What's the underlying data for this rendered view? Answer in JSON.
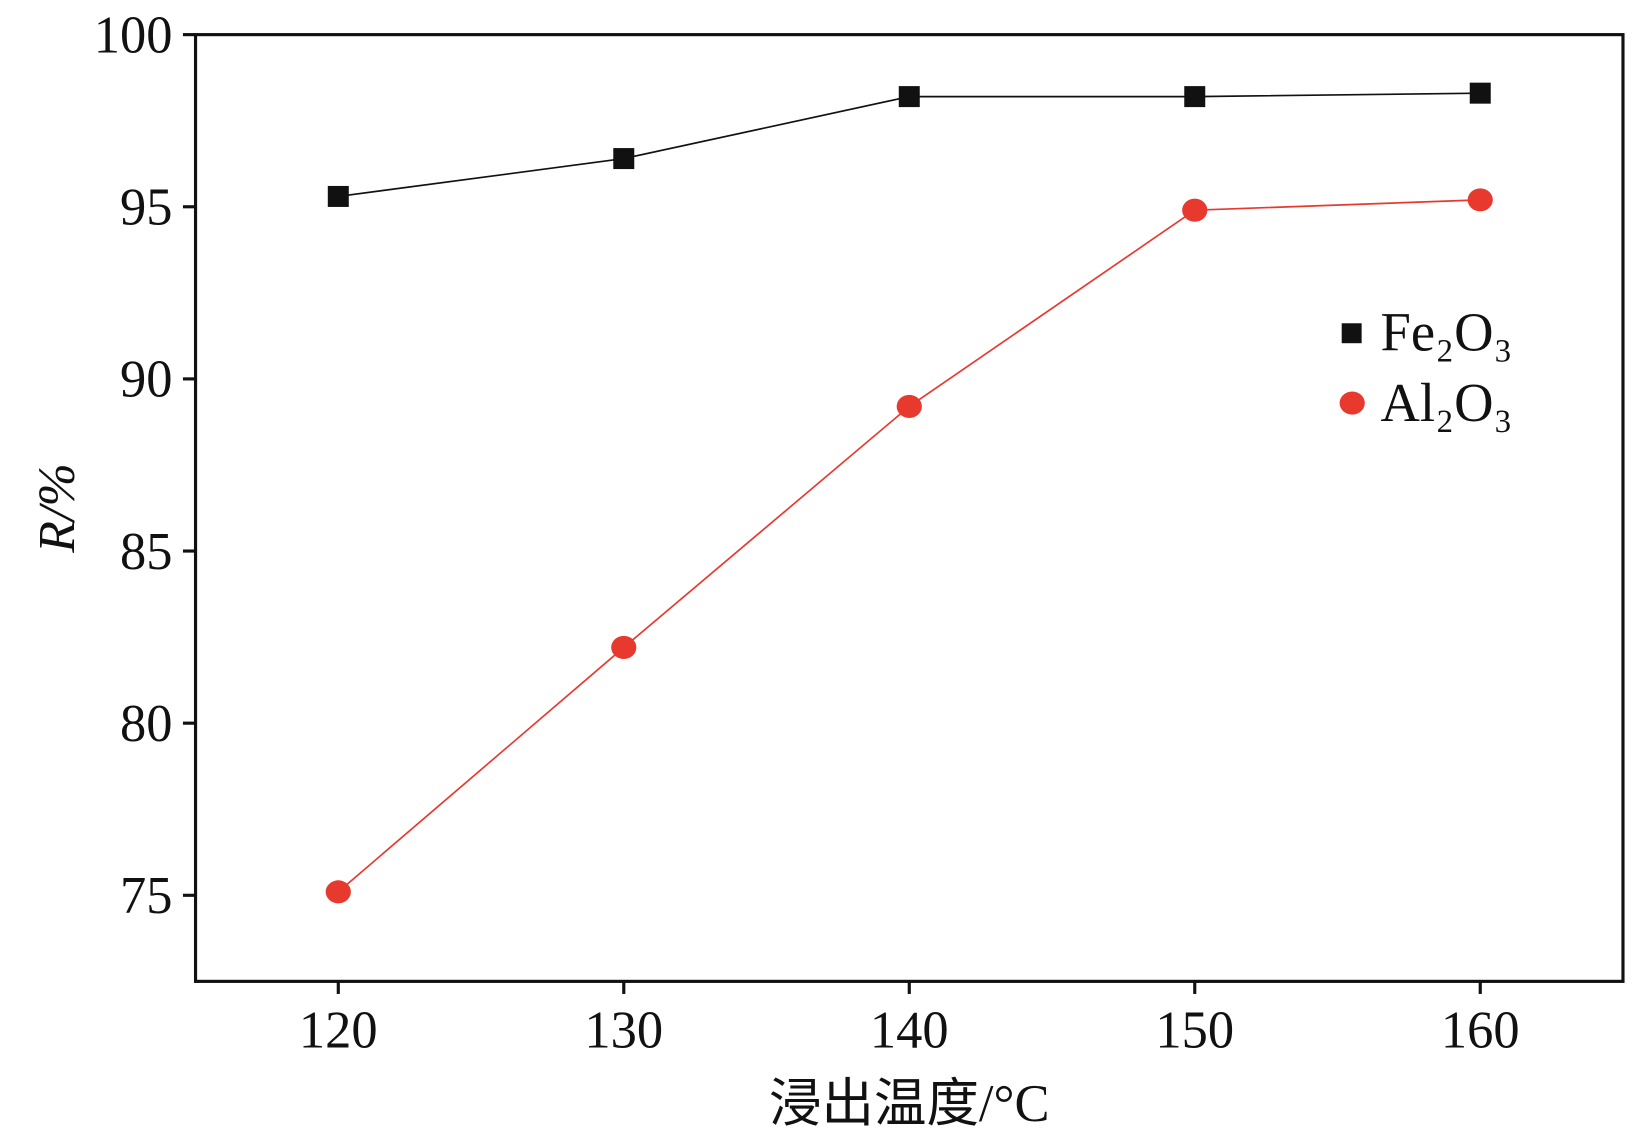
{
  "chart_data": {
    "type": "line",
    "title": "",
    "xlabel": "浸出温度/°C",
    "ylabel": "R/%",
    "xlim": [
      115,
      165
    ],
    "ylim": [
      72.5,
      100
    ],
    "xticks": [
      120,
      130,
      140,
      150,
      160
    ],
    "yticks": [
      75,
      80,
      85,
      90,
      95,
      100
    ],
    "x": [
      120,
      130,
      140,
      150,
      160
    ],
    "grid": false,
    "legend_position": "right",
    "series": [
      {
        "name": "Fe₂O₃",
        "marker": "square",
        "color": "#111111",
        "values": [
          95.3,
          96.4,
          98.2,
          98.2,
          98.3
        ]
      },
      {
        "name": "Al₂O₃",
        "marker": "circle",
        "color": "#e8392f",
        "values": [
          75.1,
          82.2,
          89.2,
          94.9,
          95.2
        ]
      }
    ]
  }
}
